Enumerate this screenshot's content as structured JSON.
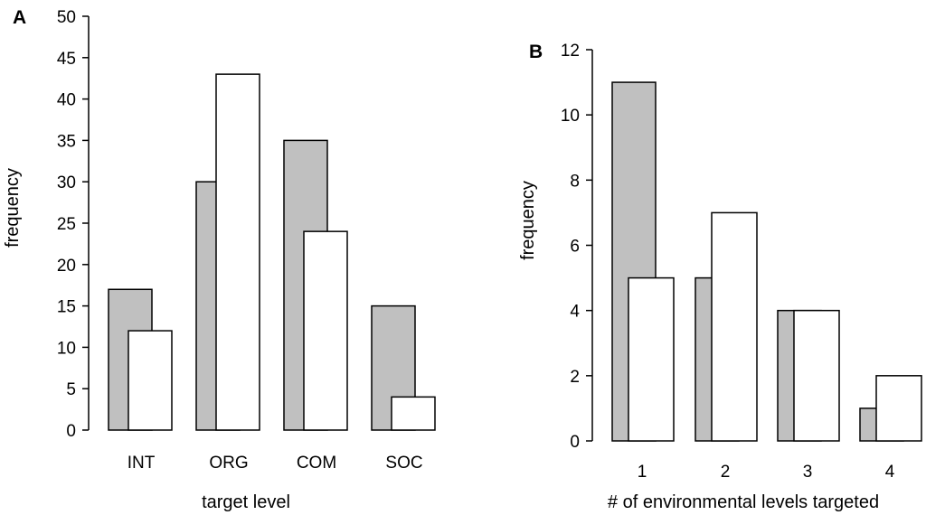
{
  "chart_data": [
    {
      "type": "bar",
      "panel_label": "A",
      "categories": [
        "INT",
        "ORG",
        "COM",
        "SOC"
      ],
      "series": [
        {
          "values": [
            17,
            30,
            35,
            15
          ],
          "color": "#c0c0c0"
        },
        {
          "values": [
            12,
            43,
            24,
            4
          ],
          "color": "#ffffff"
        }
      ],
      "xlabel": "target level",
      "ylabel": "frequency",
      "ylim": [
        0,
        50
      ],
      "yticks": [
        "0",
        "5",
        "10",
        "15",
        "20",
        "25",
        "30",
        "35",
        "40",
        "45",
        "50"
      ],
      "grid": false
    },
    {
      "type": "bar",
      "panel_label": "B",
      "categories": [
        "1",
        "2",
        "3",
        "4"
      ],
      "series": [
        {
          "values": [
            11,
            5,
            4,
            1
          ],
          "color": "#c0c0c0"
        },
        {
          "values": [
            5,
            7,
            4,
            2
          ],
          "color": "#ffffff"
        }
      ],
      "xlabel": "# of environmental levels targeted",
      "ylabel": "frequency",
      "ylim": [
        0,
        12
      ],
      "yticks": [
        "0",
        "2",
        "4",
        "6",
        "8",
        "10",
        "12"
      ],
      "grid": false
    }
  ]
}
